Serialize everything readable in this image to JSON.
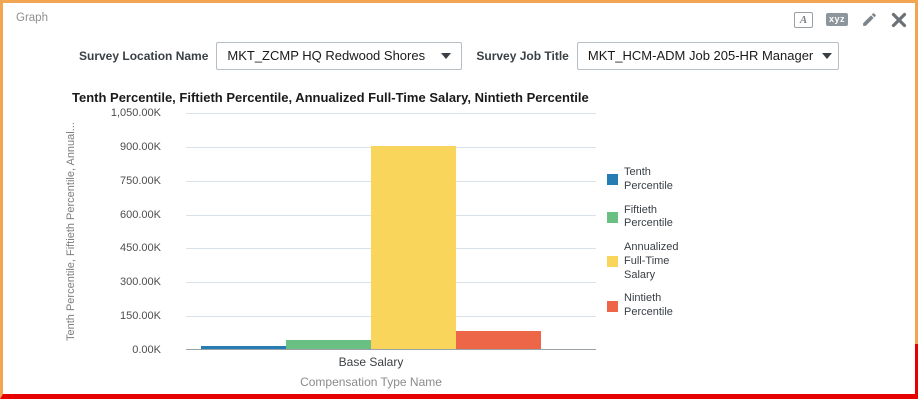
{
  "window": {
    "title": "Graph"
  },
  "toolbar": {
    "font_icon_label": "A",
    "xyz_icon_label": "xyz"
  },
  "filters": {
    "location": {
      "label": "Survey Location Name",
      "value": "MKT_ZCMP HQ Redwood Shores"
    },
    "job": {
      "label": "Survey Job Title",
      "value": "MKT_HCM-ADM Job 205-HR Manager"
    }
  },
  "chart_data": {
    "type": "bar",
    "title": "Tenth Percentile, Fiftieth Percentile, Annualized Full-Time Salary, Nintieth Percentile",
    "categories": [
      "Base Salary"
    ],
    "series": [
      {
        "name": "Tenth Percentile",
        "values": [
          13000
        ],
        "color": "#267DB3"
      },
      {
        "name": "Fiftieth Percentile",
        "values": [
          40000
        ],
        "color": "#68C182"
      },
      {
        "name": "Annualized Full-Time Salary",
        "values": [
          900000
        ],
        "color": "#FAD55C"
      },
      {
        "name": "Nintieth Percentile",
        "values": [
          81000
        ],
        "color": "#ED6647"
      }
    ],
    "xlabel": "Compensation Type Name",
    "ylabel": "Tenth Percentile, Fiftieth Percentile, Annual...",
    "ylim": [
      0,
      1050000
    ],
    "yticks": [
      "0.00K",
      "150.00K",
      "300.00K",
      "450.00K",
      "600.00K",
      "750.00K",
      "900.00K",
      "1,050.00K"
    ],
    "legend_position": "right",
    "grid": true
  },
  "colors": {
    "window_border": "#F2A654",
    "alert_line": "#E60000",
    "gridline": "#d9e2e9",
    "axis_line": "#9aa1a7"
  }
}
